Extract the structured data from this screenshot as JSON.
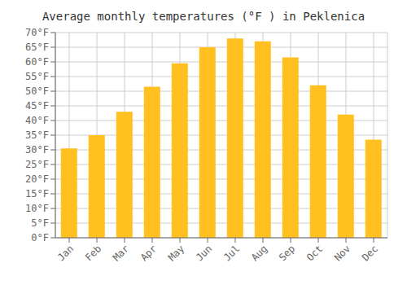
{
  "chart_data": {
    "type": "bar",
    "title": "Average monthly temperatures (°F ) in Peklenica",
    "categories": [
      "Jan",
      "Feb",
      "Mar",
      "Apr",
      "May",
      "Jun",
      "Jul",
      "Aug",
      "Sep",
      "Oct",
      "Nov",
      "Dec"
    ],
    "values": [
      30.5,
      35.0,
      43.0,
      51.5,
      59.5,
      65.0,
      68.0,
      67.0,
      61.5,
      52.0,
      42.0,
      33.5
    ],
    "color": "#FFC020",
    "ylim": [
      0,
      70
    ],
    "yticks": [
      {
        "value": 0,
        "label": "0°F"
      },
      {
        "value": 5,
        "label": "5°F"
      },
      {
        "value": 10,
        "label": "10°F"
      },
      {
        "value": 15,
        "label": "15°F"
      },
      {
        "value": 20,
        "label": "20°F"
      },
      {
        "value": 25,
        "label": "25°F"
      },
      {
        "value": 30,
        "label": "30°F"
      },
      {
        "value": 35,
        "label": "35°F"
      },
      {
        "value": 40,
        "label": "40°F"
      },
      {
        "value": 45,
        "label": "45°F"
      },
      {
        "value": 50,
        "label": "50°F"
      },
      {
        "value": 55,
        "label": "55°F"
      },
      {
        "value": 60,
        "label": "60°F"
      },
      {
        "value": 65,
        "label": "65°F"
      },
      {
        "value": 70,
        "label": "70°F"
      }
    ],
    "grid": true
  }
}
